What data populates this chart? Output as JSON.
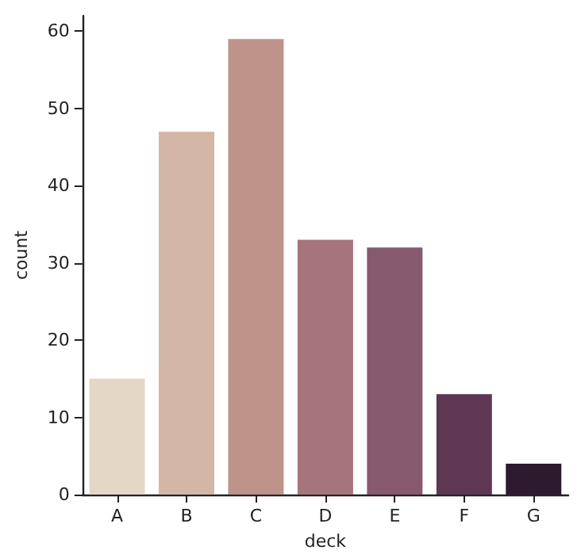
{
  "chart_data": {
    "type": "bar",
    "xlabel": "deck",
    "ylabel": "count",
    "categories": [
      "A",
      "B",
      "C",
      "D",
      "E",
      "F",
      "G"
    ],
    "values": [
      15,
      47,
      59,
      33,
      32,
      13,
      4
    ],
    "colors": [
      "#e3d7c6",
      "#d3b6a5",
      "#be938a",
      "#a6747b",
      "#87596f",
      "#5e3853",
      "#2e1a2e"
    ],
    "ylim": [
      0,
      62
    ],
    "yticks": [
      0,
      10,
      20,
      30,
      40,
      50,
      60
    ],
    "grid": false
  }
}
